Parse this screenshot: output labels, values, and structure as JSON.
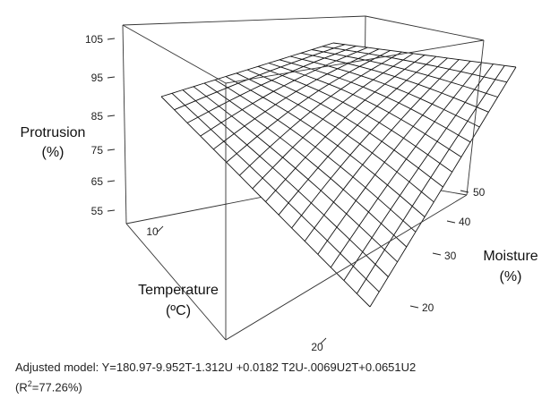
{
  "chart_data": {
    "type": "surface",
    "title": "",
    "z_axis": {
      "label_line1": "Protrusion",
      "label_line2": "(%)",
      "ticks": [
        "105",
        "95",
        "85",
        "75",
        "65",
        "55"
      ]
    },
    "temperature_axis": {
      "label_line1": "Temperature",
      "label_line2": "(ºC)",
      "ticks": [
        "10",
        "20"
      ]
    },
    "moisture_axis": {
      "label_line1": "Moisture",
      "label_line2": "(%)",
      "ticks": [
        "50",
        "40",
        "30",
        "20"
      ]
    },
    "surface_samples": [
      {
        "temperature": 10,
        "moisture": 50,
        "protrusion": 87
      },
      {
        "temperature": 10,
        "moisture": 16,
        "protrusion": 103
      },
      {
        "temperature": 23,
        "moisture": 50,
        "protrusion": 93
      },
      {
        "temperature": 23,
        "moisture": 16,
        "protrusion": 51
      }
    ],
    "grid": true,
    "mesh_color": "#111111"
  },
  "caption": {
    "model": "Adjusted model: Y=180.97-9.952T-1.312U +0.0182 T2U-.0069U2T+0.0651U2",
    "r2_prefix": "(R",
    "r2_sup": "2",
    "r2_suffix": "=77.26%)"
  }
}
